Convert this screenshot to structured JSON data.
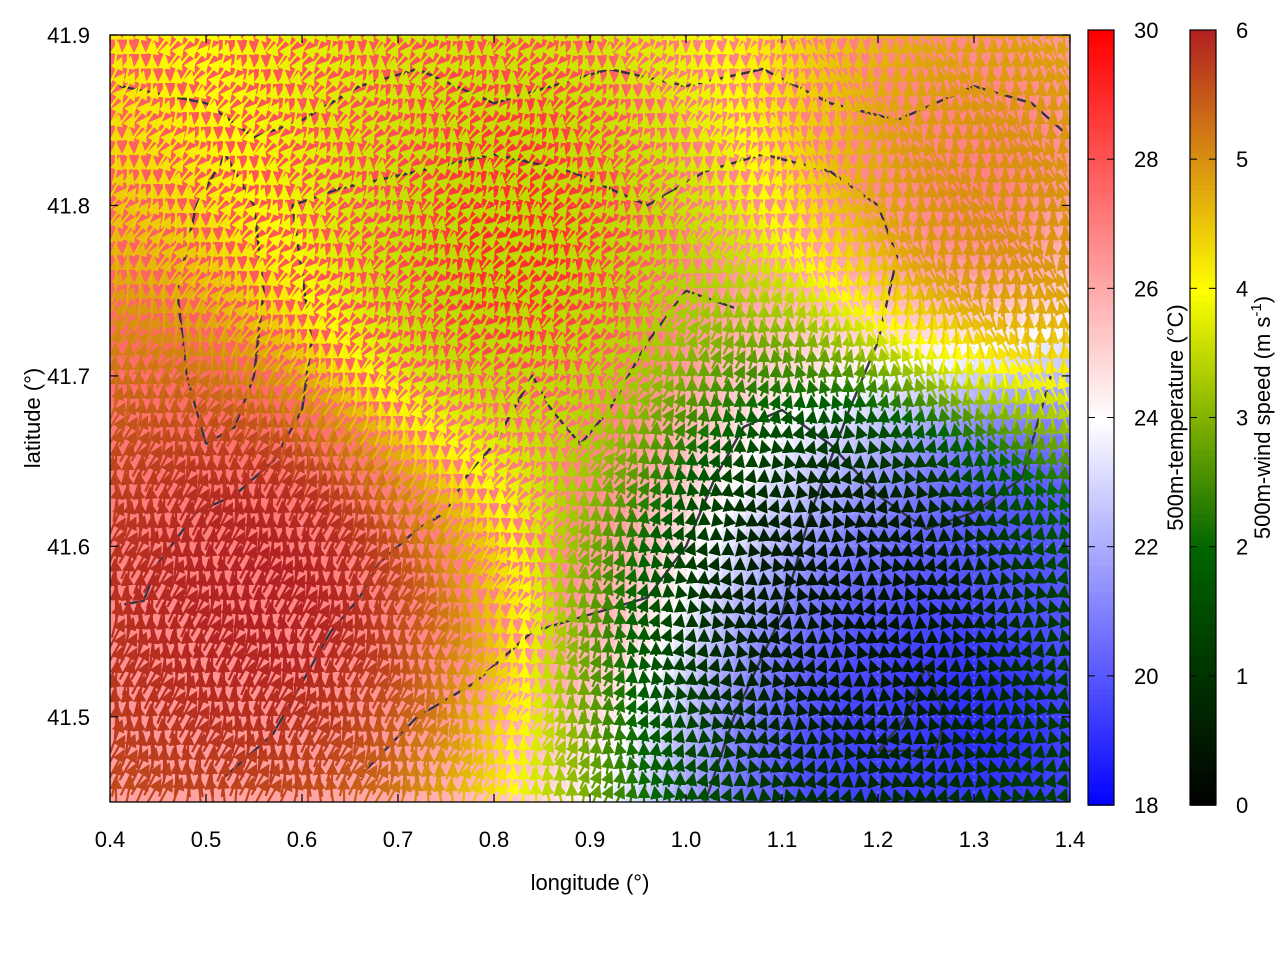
{
  "chart_data": {
    "type": "heatmap",
    "xlabel": "longitude (°)",
    "ylabel": "latitude (°)",
    "xlim": [
      0.4,
      1.4
    ],
    "ylim": [
      41.45,
      41.9
    ],
    "xticks": [
      0.4,
      0.5,
      0.6,
      0.7,
      0.8,
      0.9,
      1.0,
      1.1,
      1.2,
      1.3,
      1.4
    ],
    "xtick_labels": [
      "0.4",
      "0.5",
      "0.6",
      "0.7",
      "0.8",
      "0.9",
      "1.0",
      "1.1",
      "1.2",
      "1.3",
      "1.4"
    ],
    "yticks": [
      41.5,
      41.6,
      41.7,
      41.8,
      41.9
    ],
    "ytick_labels": [
      "41.5",
      "41.6",
      "41.7",
      "41.8",
      "41.9"
    ],
    "grid": true,
    "colorbars": [
      {
        "label_main": "500m-temperature (°C)",
        "label_sup": "",
        "label_end": "",
        "range": [
          18,
          30
        ],
        "ticks": [
          18,
          20,
          22,
          24,
          26,
          28,
          30
        ],
        "tick_labels": [
          "18",
          "20",
          "22",
          "24",
          "26",
          "28",
          "30"
        ],
        "palette": [
          "#0000ff",
          "#ffffff",
          "#ff0000"
        ],
        "placement": "right"
      },
      {
        "label_main": "500m-wind speed (m s",
        "label_sup": "-1",
        "label_end": ")",
        "range": [
          0,
          6
        ],
        "ticks": [
          0,
          1,
          2,
          3,
          4,
          5,
          6
        ],
        "tick_labels": [
          "0",
          "1",
          "2",
          "3",
          "4",
          "5",
          "6"
        ],
        "palette": [
          "#000000",
          "#006400",
          "#ffff00",
          "#b22222"
        ],
        "placement": "far-right"
      }
    ],
    "temperature_field": {
      "description_units": "°C",
      "warm_core": [
        [
          0.82,
          41.78,
          29
        ],
        [
          0.6,
          41.82,
          28
        ],
        [
          0.78,
          41.62,
          27
        ],
        [
          1.15,
          41.87,
          27
        ],
        [
          1.3,
          41.82,
          27
        ]
      ],
      "cool_core": [
        [
          1.3,
          41.5,
          19
        ],
        [
          1.22,
          41.47,
          19.5
        ],
        [
          1.35,
          41.6,
          20
        ]
      ]
    },
    "wind_regions": [
      {
        "lon": [
          0.4,
          0.72
        ],
        "lat": [
          41.45,
          41.7
        ],
        "speed": 6,
        "direction_deg": 80
      },
      {
        "lon": [
          0.6,
          1.0
        ],
        "lat": [
          41.6,
          41.9
        ],
        "speed": 3.5,
        "direction_deg": 60
      },
      {
        "lon": [
          1.0,
          1.35
        ],
        "lat": [
          41.45,
          41.7
        ],
        "speed": 0.4,
        "direction_deg": 90
      },
      {
        "lon": [
          1.25,
          1.4
        ],
        "lat": [
          41.7,
          41.9
        ],
        "speed": 5,
        "direction_deg": 100
      }
    ],
    "coastline_contours": [
      [
        [
          0.415,
          41.566
        ],
        [
          0.435,
          41.568
        ],
        [
          0.45,
          41.59
        ],
        [
          0.49,
          41.62
        ],
        [
          0.53,
          41.63
        ],
        [
          0.57,
          41.65
        ],
        [
          0.6,
          41.68
        ],
        [
          0.61,
          41.72
        ],
        [
          0.6,
          41.76
        ],
        [
          0.59,
          41.8
        ],
        [
          0.64,
          41.81
        ],
        [
          0.72,
          41.82
        ],
        [
          0.8,
          41.83
        ],
        [
          0.88,
          41.82
        ],
        [
          0.96,
          41.8
        ],
        [
          1.02,
          41.82
        ],
        [
          1.08,
          41.83
        ],
        [
          1.15,
          41.82
        ],
        [
          1.2,
          41.8
        ],
        [
          1.22,
          41.77
        ],
        [
          1.2,
          41.72
        ],
        [
          1.17,
          41.68
        ],
        [
          1.13,
          41.62
        ],
        [
          1.1,
          41.56
        ],
        [
          1.05,
          41.5
        ],
        [
          1.02,
          41.45
        ]
      ],
      [
        [
          0.52,
          41.465
        ],
        [
          0.57,
          41.49
        ],
        [
          0.6,
          41.52
        ],
        [
          0.63,
          41.55
        ],
        [
          0.66,
          41.57
        ],
        [
          0.68,
          41.59
        ],
        [
          0.72,
          41.61
        ],
        [
          0.75,
          41.62
        ],
        [
          0.77,
          41.64
        ],
        [
          0.8,
          41.66
        ],
        [
          0.82,
          41.68
        ],
        [
          0.84,
          41.7
        ],
        [
          0.86,
          41.68
        ],
        [
          0.89,
          41.66
        ],
        [
          0.92,
          41.68
        ],
        [
          0.96,
          41.72
        ],
        [
          1.0,
          41.75
        ],
        [
          1.05,
          41.74
        ]
      ],
      [
        [
          0.66,
          41.465
        ],
        [
          0.72,
          41.5
        ],
        [
          0.78,
          41.52
        ],
        [
          0.84,
          41.55
        ],
        [
          0.9,
          41.56
        ],
        [
          0.96,
          41.57
        ],
        [
          1.0,
          41.6
        ],
        [
          1.03,
          41.64
        ],
        [
          1.06,
          41.67
        ],
        [
          1.1,
          41.68
        ],
        [
          1.15,
          41.66
        ],
        [
          1.2,
          41.63
        ],
        [
          1.25,
          41.61
        ],
        [
          1.3,
          41.62
        ],
        [
          1.35,
          41.64
        ],
        [
          1.38,
          41.7
        ]
      ],
      [
        [
          0.41,
          41.87
        ],
        [
          0.5,
          41.86
        ],
        [
          0.55,
          41.84
        ],
        [
          0.6,
          41.85
        ],
        [
          0.66,
          41.87
        ],
        [
          0.72,
          41.88
        ],
        [
          0.8,
          41.86
        ],
        [
          0.86,
          41.87
        ],
        [
          0.92,
          41.88
        ],
        [
          1.0,
          41.87
        ],
        [
          1.08,
          41.88
        ],
        [
          1.15,
          41.86
        ],
        [
          1.22,
          41.85
        ],
        [
          1.3,
          41.87
        ],
        [
          1.36,
          41.86
        ],
        [
          1.4,
          41.84
        ]
      ],
      [
        [
          0.5,
          41.66
        ],
        [
          0.48,
          41.7
        ],
        [
          0.47,
          41.75
        ],
        [
          0.49,
          41.8
        ],
        [
          0.52,
          41.83
        ],
        [
          0.55,
          41.8
        ],
        [
          0.56,
          41.75
        ],
        [
          0.55,
          41.7
        ],
        [
          0.53,
          41.67
        ],
        [
          0.5,
          41.66
        ]
      ],
      [
        [
          1.2,
          41.48
        ],
        [
          1.23,
          41.5
        ],
        [
          1.25,
          41.53
        ],
        [
          1.27,
          41.5
        ],
        [
          1.26,
          41.48
        ],
        [
          1.2,
          41.48
        ]
      ]
    ]
  }
}
